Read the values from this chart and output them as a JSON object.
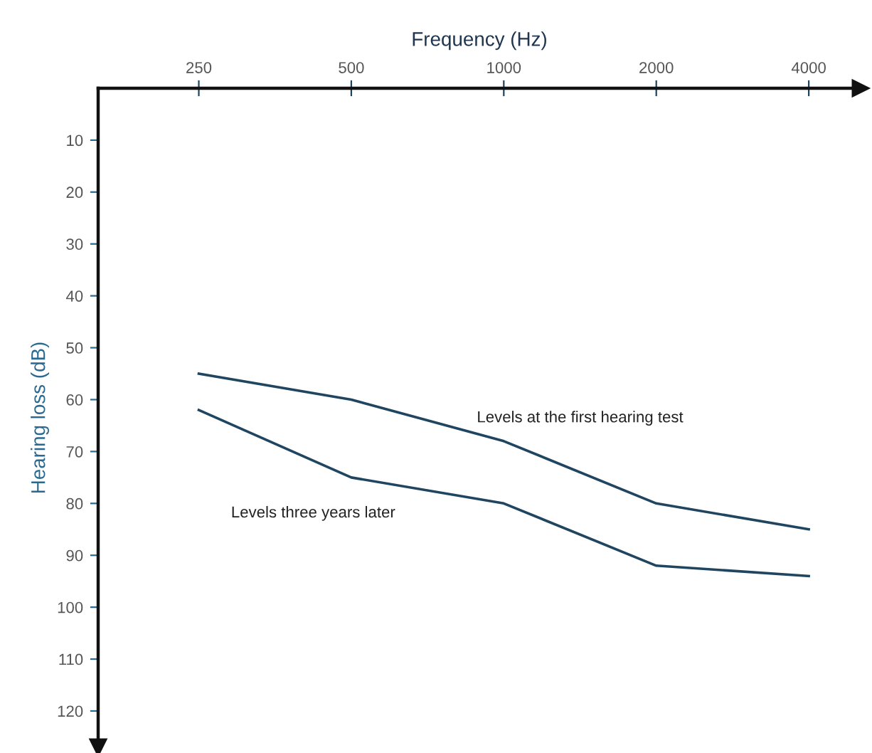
{
  "chart_data": {
    "type": "line",
    "xlabel": "Frequency (Hz)",
    "ylabel": "Hearing loss (dB)",
    "categories": [
      "250",
      "500",
      "1000",
      "2000",
      "4000"
    ],
    "series": [
      {
        "name": "Levels at the first hearing test",
        "color": "#1f4560",
        "values": [
          55,
          60,
          68,
          80,
          85
        ]
      },
      {
        "name": "Levels three years later",
        "color": "#1f4560",
        "values": [
          62,
          75,
          80,
          92,
          94
        ]
      }
    ],
    "ylim": [
      127,
      0
    ],
    "yticks": [
      10,
      20,
      30,
      40,
      50,
      60,
      70,
      80,
      90,
      100,
      110,
      120
    ],
    "grid": false,
    "legend": false,
    "marker": "none",
    "line_style": "solid"
  }
}
